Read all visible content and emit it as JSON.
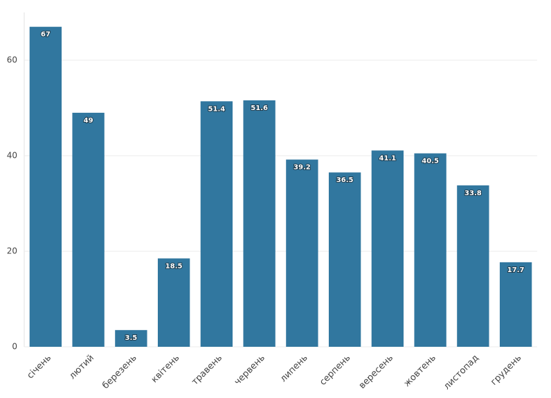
{
  "chart_data": {
    "type": "bar",
    "categories": [
      "січень",
      "лютий",
      "березень",
      "квітень",
      "травень",
      "червень",
      "липень",
      "серпень",
      "вересень",
      "жовтень",
      "листопад",
      "грудень"
    ],
    "values": [
      67,
      49,
      3.5,
      18.5,
      51.4,
      51.6,
      39.2,
      36.5,
      41.1,
      40.5,
      33.8,
      17.7
    ],
    "color": "#31779f",
    "ylim": [
      0,
      70
    ],
    "yticks": [
      0,
      20,
      40,
      60
    ],
    "grid": true
  }
}
